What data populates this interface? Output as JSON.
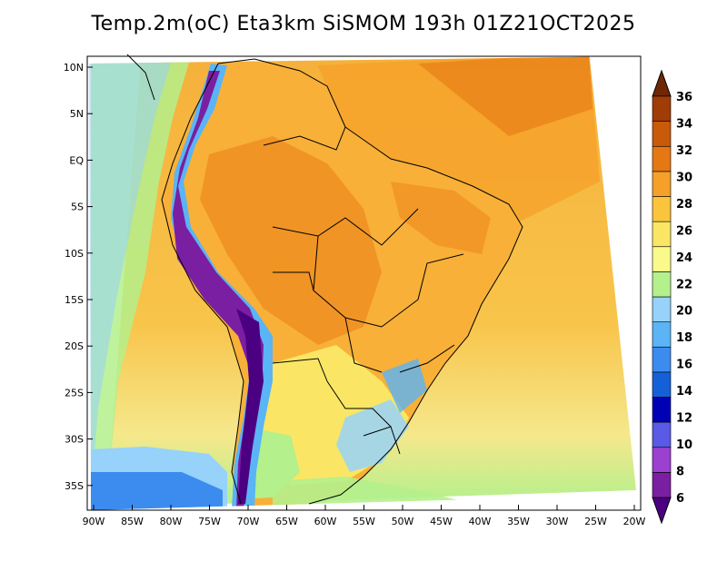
{
  "title": "Temp.2m(oC) Eta3km SiSMOM 193h 01Z21OCT2025",
  "map": {
    "lat_labels": [
      "10N",
      "5N",
      "EQ",
      "5S",
      "10S",
      "15S",
      "20S",
      "25S",
      "30S",
      "35S"
    ],
    "lon_labels": [
      "90W",
      "85W",
      "80W",
      "75W",
      "70W",
      "65W",
      "60W",
      "55W",
      "50W",
      "45W",
      "40W",
      "35W",
      "30W",
      "25W",
      "20W"
    ]
  },
  "colorbar": {
    "levels": [
      "6",
      "8",
      "10",
      "12",
      "14",
      "16",
      "18",
      "20",
      "22",
      "24",
      "26",
      "28",
      "30",
      "32",
      "34",
      "36"
    ],
    "colors": [
      "#4b0082",
      "#7a1fa2",
      "#9b40d0",
      "#5a5ae6",
      "#0000b4",
      "#1560d8",
      "#3c8cf0",
      "#5ab4f5",
      "#96d2fa",
      "#b4f08c",
      "#fafa8c",
      "#fae664",
      "#fac43c",
      "#f5a028",
      "#e67814",
      "#c85a0a",
      "#a03c05",
      "#6e2805"
    ]
  }
}
